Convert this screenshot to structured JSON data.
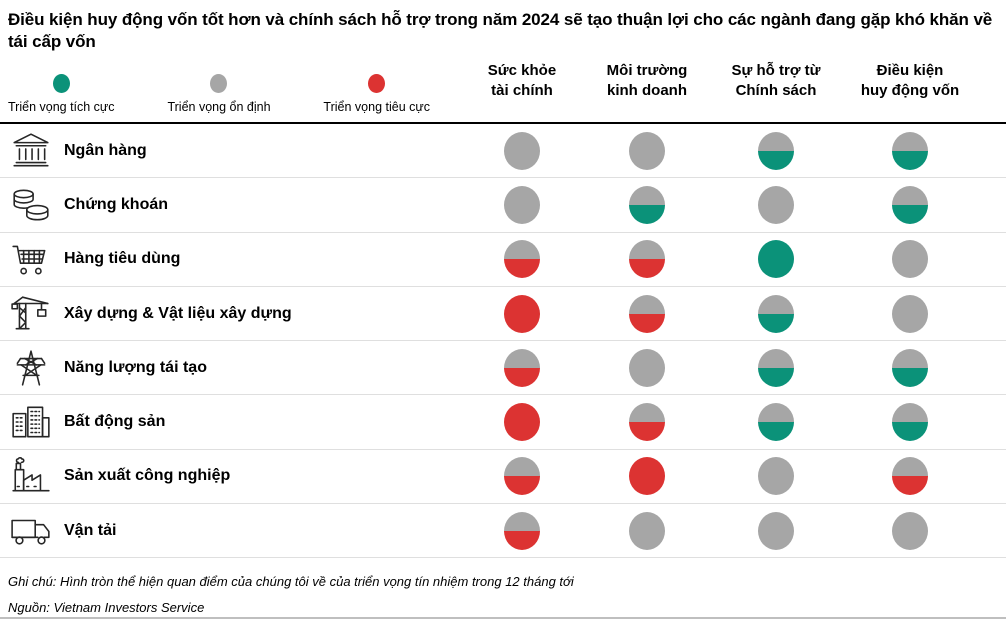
{
  "title": "Điều kiện huy động vốn tốt hơn và chính sách hỗ trợ trong năm 2024 sẽ tạo thuận lợi cho các ngành đang gặp khó khăn về tái cấp vốn",
  "colors": {
    "positive": "#0B9279",
    "stable": "#A6A6A6",
    "negative": "#DC3332"
  },
  "legend": {
    "items": [
      {
        "key": "positive",
        "label": "Triển vọng tích cực",
        "color": "#0B9279"
      },
      {
        "key": "stable",
        "label": "Triển vọng ổn định",
        "color": "#A6A6A6"
      },
      {
        "key": "negative",
        "label": "Triển vọng tiêu cực",
        "color": "#DC3332"
      }
    ]
  },
  "chart_data": {
    "type": "table",
    "title": "Điều kiện huy động vốn tốt hơn và chính sách hỗ trợ trong năm 2024 sẽ tạo thuận lợi cho các ngành đang gặp khó khăn về tái cấp vốn",
    "value_semantics": "positive = Triển vọng tích cực (xanh); stable = Triển vọng ổn định (xám); negative = Triển vọng tiêu cực (đỏ); stable-positive / stable-negative = hình tròn nửa trên xám, nửa dưới xanh/đỏ",
    "columns": [
      {
        "line1": "Sức khỏe",
        "line2": "tài chính"
      },
      {
        "line1": "Môi trường",
        "line2": "kinh doanh"
      },
      {
        "line1": "Sự hỗ trợ từ",
        "line2": "Chính sách"
      },
      {
        "line1": "Điều kiện",
        "line2": "huy động vốn"
      }
    ],
    "rows": [
      {
        "icon": "bank",
        "label": "Ngân hàng",
        "values": [
          "stable",
          "stable",
          "stable-positive",
          "stable-positive"
        ]
      },
      {
        "icon": "coins",
        "label": "Chứng khoán",
        "values": [
          "stable",
          "stable-positive",
          "stable",
          "stable-positive"
        ]
      },
      {
        "icon": "cart",
        "label": "Hàng tiêu dùng",
        "values": [
          "stable-negative",
          "stable-negative",
          "positive",
          "stable"
        ]
      },
      {
        "icon": "crane",
        "label": "Xây dựng & Vật liệu xây dựng",
        "values": [
          "negative",
          "stable-negative",
          "stable-positive",
          "stable"
        ]
      },
      {
        "icon": "power-tower",
        "label": "Năng lượng tái tạo",
        "values": [
          "stable-negative",
          "stable",
          "stable-positive",
          "stable-positive"
        ]
      },
      {
        "icon": "buildings",
        "label": "Bất động sản",
        "values": [
          "negative",
          "stable-negative",
          "stable-positive",
          "stable-positive"
        ]
      },
      {
        "icon": "factory",
        "label": "Sản xuất công nghiệp",
        "values": [
          "stable-negative",
          "negative",
          "stable",
          "stable-negative"
        ]
      },
      {
        "icon": "truck",
        "label": "Vận tải",
        "values": [
          "stable-negative",
          "stable",
          "stable",
          "stable"
        ]
      }
    ]
  },
  "footnotes": {
    "note": "Ghi chú: Hình tròn thể hiện quan điểm của chúng tôi về của triển vọng tín nhiệm trong 12 tháng tới",
    "source": "Nguồn: Vietnam Investors Service"
  }
}
